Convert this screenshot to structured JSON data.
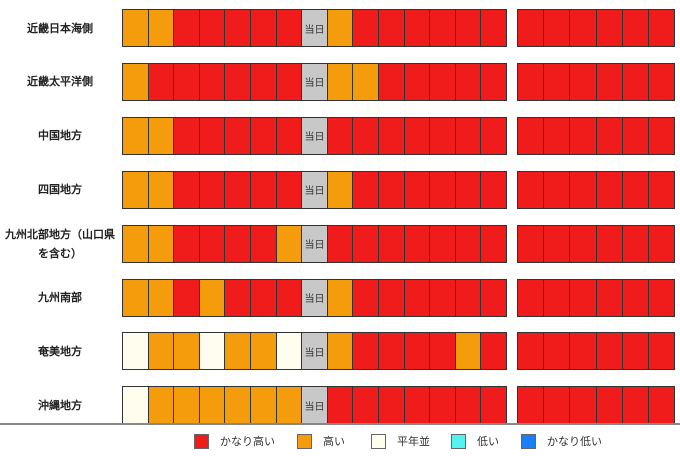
{
  "legend": [
    {
      "label": "かなり高い",
      "color": "#f01c1c"
    },
    {
      "label": "高い",
      "color": "#f59c0c"
    },
    {
      "label": "平年並",
      "color": "#fffdee"
    },
    {
      "label": "低い",
      "color": "#55f2f2"
    },
    {
      "label": "かなり低い",
      "color": "#1a7ef5"
    }
  ],
  "today_label": "当日",
  "today_color": "#c8c8c8",
  "rows": [
    {
      "name": "近畿日本海側",
      "cells": [
        1,
        1,
        0,
        0,
        0,
        0,
        0,
        null,
        1,
        0,
        0,
        0,
        0,
        0,
        0
      ],
      "later": [
        0,
        0,
        0,
        0,
        0,
        0
      ]
    },
    {
      "name": "近畿太平洋側",
      "cells": [
        1,
        0,
        0,
        0,
        0,
        0,
        0,
        null,
        1,
        1,
        0,
        0,
        0,
        0,
        0
      ],
      "later": [
        0,
        0,
        0,
        0,
        0,
        0
      ]
    },
    {
      "name": "中国地方",
      "cells": [
        1,
        1,
        0,
        0,
        0,
        0,
        0,
        null,
        0,
        0,
        0,
        0,
        0,
        0,
        0
      ],
      "later": [
        0,
        0,
        0,
        0,
        0,
        0
      ]
    },
    {
      "name": "四国地方",
      "cells": [
        1,
        1,
        0,
        0,
        0,
        0,
        0,
        null,
        1,
        0,
        0,
        0,
        0,
        0,
        0
      ],
      "later": [
        0,
        0,
        0,
        0,
        0,
        0
      ]
    },
    {
      "name": "九州北部地方（山口県を含む）",
      "cells": [
        1,
        1,
        0,
        0,
        0,
        0,
        1,
        null,
        0,
        0,
        0,
        0,
        0,
        0,
        0
      ],
      "later": [
        0,
        0,
        0,
        0,
        0,
        0
      ]
    },
    {
      "name": "九州南部",
      "cells": [
        1,
        1,
        0,
        1,
        0,
        0,
        0,
        null,
        1,
        0,
        0,
        0,
        0,
        0,
        0
      ],
      "later": [
        0,
        0,
        0,
        0,
        0,
        0
      ]
    },
    {
      "name": "奄美地方",
      "cells": [
        2,
        1,
        1,
        2,
        1,
        1,
        2,
        null,
        1,
        0,
        0,
        0,
        0,
        1,
        0
      ],
      "later": [
        0,
        0,
        0,
        0,
        0,
        0
      ]
    },
    {
      "name": "沖縄地方",
      "cells": [
        2,
        1,
        1,
        1,
        1,
        1,
        1,
        null,
        0,
        0,
        0,
        0,
        0,
        0,
        0
      ],
      "later": [
        0,
        0,
        0,
        0,
        0,
        0
      ]
    }
  ]
}
